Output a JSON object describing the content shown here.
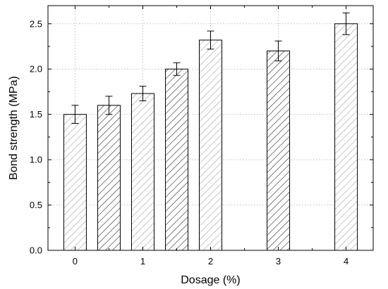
{
  "chart_data": {
    "type": "bar",
    "title": "",
    "xlabel": "Dosage (%)",
    "ylabel": "Bond strength (MPa)",
    "ylim": [
      0,
      2.7
    ],
    "xlim": [
      -0.4,
      4.4
    ],
    "grid": true,
    "grid_style": "dotted",
    "x_ticks": [
      0,
      1,
      2,
      3,
      4
    ],
    "x_tick_labels": [
      "0",
      "1",
      "2",
      "3",
      "4"
    ],
    "y_ticks": [
      0.0,
      0.5,
      1.0,
      1.5,
      2.0,
      2.5
    ],
    "y_tick_labels": [
      "0.0",
      "0.5",
      "1.0",
      "1.5",
      "2.0",
      "2.5"
    ],
    "bars": [
      {
        "x": 0.0,
        "value": 1.5,
        "error": 0.1,
        "hatch": "light"
      },
      {
        "x": 0.5,
        "value": 1.6,
        "error": 0.1,
        "hatch": "dark"
      },
      {
        "x": 1.0,
        "value": 1.73,
        "error": 0.08,
        "hatch": "light"
      },
      {
        "x": 1.5,
        "value": 2.0,
        "error": 0.07,
        "hatch": "dark"
      },
      {
        "x": 2.0,
        "value": 2.32,
        "error": 0.1,
        "hatch": "light"
      },
      {
        "x": 3.0,
        "value": 2.2,
        "error": 0.11,
        "hatch": "dark"
      },
      {
        "x": 4.0,
        "value": 2.5,
        "error": 0.12,
        "hatch": "light"
      }
    ],
    "colors": {
      "bar_fill": "#ffffff",
      "hatch_light": "#a8a8a8",
      "hatch_dark": "#3a3a3a",
      "axis": "#000000",
      "grid": "#bdbdbd"
    }
  }
}
